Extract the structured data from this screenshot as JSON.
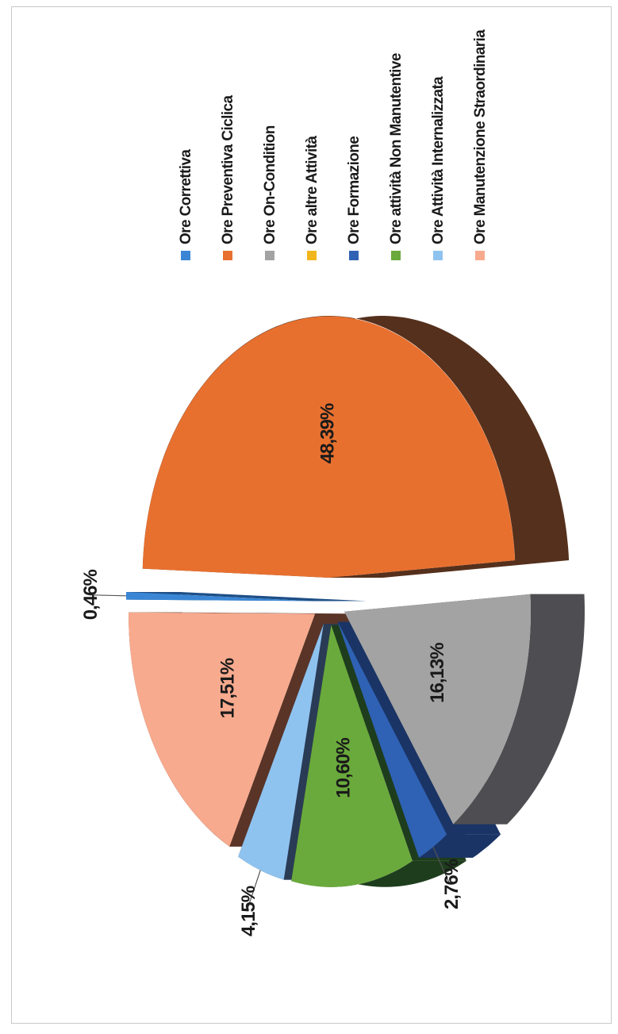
{
  "chart_data": {
    "type": "pie",
    "style": "3d-exploded",
    "legend_position": "right",
    "slices": [
      {
        "name": "Ore Correttiva",
        "value": 0.46,
        "label": "0,46%",
        "color": "#3a86d4",
        "side": "#1f4f86"
      },
      {
        "name": "Ore Preventiva Ciclica",
        "value": 48.39,
        "label": "48,39%",
        "color": "#e8702f",
        "side": "#55301c"
      },
      {
        "name": "Ore On-Condition",
        "value": 16.13,
        "label": "16,13%",
        "color": "#a3a3a3",
        "side": "#4e4e52"
      },
      {
        "name": "Ore altre Attività",
        "value": 0,
        "label": "",
        "color": "#f2b61d",
        "side": "#8a5e0f"
      },
      {
        "name": "Ore Formazione",
        "value": 2.76,
        "label": "2,76%",
        "color": "#2f62b4",
        "side": "#1a3466"
      },
      {
        "name": "Ore attività Non Manutentive",
        "value": 10.6,
        "label": "10,60%",
        "color": "#6aaa3c",
        "side": "#1e3d1d"
      },
      {
        "name": "Ore Attività Internalizzata",
        "value": 4.15,
        "label": "4,15%",
        "color": "#8fc3ef",
        "side": "#2a3b56"
      },
      {
        "name": "Ore Manutenzione Straordinaria",
        "value": 17.51,
        "label": "17,51%",
        "color": "#f7aa8e",
        "side": "#5a3427"
      }
    ]
  }
}
